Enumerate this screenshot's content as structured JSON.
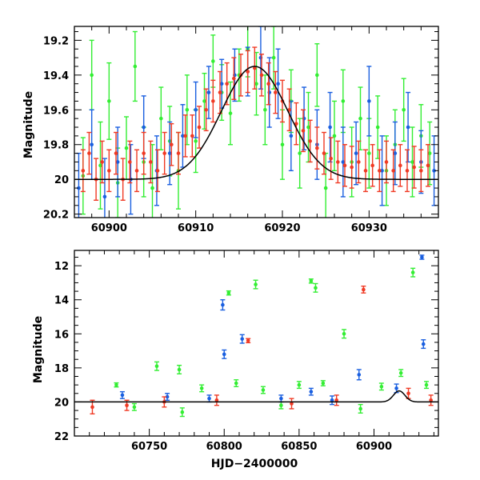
{
  "colors": {
    "green": "#33ee33",
    "blue": "#1a5fe0",
    "red": "#f03a24",
    "model": "#000000"
  },
  "chart_data": [
    {
      "type": "scatter",
      "xlabel": "",
      "ylabel": "Magnitude",
      "xlim": [
        60896,
        60938
      ],
      "ylim": [
        20.22,
        19.12
      ],
      "y_inverted": true,
      "xticks": [
        60900,
        60910,
        60920,
        60930
      ],
      "xtick_labels": [
        "60900",
        "60910",
        "60920",
        "60930"
      ],
      "yticks": [
        19.2,
        19.4,
        19.6,
        19.8,
        20,
        20.2
      ],
      "ytick_labels": [
        "19.2",
        "19.4",
        "19.6",
        "19.8",
        "20",
        "20.2"
      ],
      "grid": false,
      "model_curve": {
        "peak_x": 60916.8,
        "peak_mag": 19.35,
        "base_mag": 20.0,
        "fwhm": 9.0
      },
      "series": [
        {
          "color_key": "green",
          "data": [
            [
              60897,
              19.98,
              0.22
            ],
            [
              60898,
              19.4,
              0.2
            ],
            [
              60899,
              19.92,
              0.25
            ],
            [
              60900,
              19.55,
              0.22
            ],
            [
              60901,
              20.02,
              0.2
            ],
            [
              60902,
              19.82,
              0.18
            ],
            [
              60903,
              19.35,
              0.2
            ],
            [
              60904,
              19.9,
              0.2
            ],
            [
              60905,
              20.05,
              0.25
            ],
            [
              60906,
              19.65,
              0.18
            ],
            [
              60907,
              19.78,
              0.2
            ],
            [
              60908,
              19.95,
              0.22
            ],
            [
              60909,
              19.6,
              0.2
            ],
            [
              60910,
              19.78,
              0.18
            ],
            [
              60911,
              19.55,
              0.16
            ],
            [
              60912,
              19.32,
              0.15
            ],
            [
              60913,
              19.5,
              0.16
            ],
            [
              60914,
              19.62,
              0.18
            ],
            [
              60915,
              19.4,
              0.15
            ],
            [
              60916,
              19.25,
              0.16
            ],
            [
              60917,
              19.45,
              0.18
            ],
            [
              60918,
              19.6,
              0.2
            ],
            [
              60919,
              19.3,
              0.18
            ],
            [
              60920,
              19.8,
              0.2
            ],
            [
              60921,
              19.55,
              0.18
            ],
            [
              60922,
              19.85,
              0.2
            ],
            [
              60923,
              19.7,
              0.2
            ],
            [
              60924,
              19.4,
              0.18
            ],
            [
              60925,
              20.05,
              0.2
            ],
            [
              60926,
              19.75,
              0.2
            ],
            [
              60927,
              19.55,
              0.18
            ],
            [
              60928,
              19.9,
              0.2
            ],
            [
              60929,
              19.65,
              0.18
            ],
            [
              60930,
              19.85,
              0.2
            ],
            [
              60931,
              19.7,
              0.18
            ],
            [
              60932,
              19.95,
              0.2
            ],
            [
              60933,
              19.8,
              0.2
            ],
            [
              60934,
              19.6,
              0.18
            ],
            [
              60935,
              19.9,
              0.2
            ],
            [
              60936,
              19.75,
              0.18
            ],
            [
              60937,
              19.85,
              0.18
            ]
          ]
        },
        {
          "color_key": "blue",
          "data": [
            [
              60896.5,
              20.05,
              0.2
            ],
            [
              60898,
              19.8,
              0.2
            ],
            [
              60899.5,
              20.1,
              0.22
            ],
            [
              60901,
              19.9,
              0.2
            ],
            [
              60902.5,
              20.0,
              0.2
            ],
            [
              60904,
              19.7,
              0.18
            ],
            [
              60905.5,
              19.95,
              0.2
            ],
            [
              60907,
              19.85,
              0.18
            ],
            [
              60908.5,
              19.75,
              0.18
            ],
            [
              60910,
              19.6,
              0.16
            ],
            [
              60911.5,
              19.5,
              0.15
            ],
            [
              60913,
              19.45,
              0.14
            ],
            [
              60914.5,
              19.4,
              0.15
            ],
            [
              60916,
              19.38,
              0.14
            ],
            [
              60917.5,
              19.3,
              0.18
            ],
            [
              60918.5,
              19.5,
              0.2
            ],
            [
              60919.5,
              19.45,
              0.2
            ],
            [
              60921,
              19.75,
              0.2
            ],
            [
              60922.5,
              19.65,
              0.18
            ],
            [
              60924,
              19.8,
              0.2
            ],
            [
              60925.5,
              19.7,
              0.2
            ],
            [
              60927,
              19.9,
              0.2
            ],
            [
              60928.5,
              19.85,
              0.18
            ],
            [
              60930,
              19.55,
              0.2
            ],
            [
              60931.5,
              19.95,
              0.2
            ],
            [
              60933,
              19.85,
              0.18
            ],
            [
              60934.5,
              19.7,
              0.2
            ],
            [
              60936,
              19.9,
              0.18
            ],
            [
              60937.5,
              19.95,
              0.2
            ]
          ]
        },
        {
          "color_key": "red",
          "data": [
            [
              60897,
              19.95,
              0.12
            ],
            [
              60897.7,
              19.85,
              0.12
            ],
            [
              60898.5,
              20.0,
              0.12
            ],
            [
              60899.2,
              19.9,
              0.12
            ],
            [
              60900,
              19.95,
              0.12
            ],
            [
              60900.8,
              19.85,
              0.12
            ],
            [
              60901.6,
              20.0,
              0.12
            ],
            [
              60902.4,
              19.9,
              0.12
            ],
            [
              60903.2,
              19.95,
              0.12
            ],
            [
              60904,
              19.85,
              0.12
            ],
            [
              60904.8,
              19.9,
              0.12
            ],
            [
              60905.6,
              19.95,
              0.12
            ],
            [
              60906.4,
              19.85,
              0.12
            ],
            [
              60907.2,
              19.8,
              0.12
            ],
            [
              60908,
              19.85,
              0.12
            ],
            [
              60908.8,
              19.75,
              0.12
            ],
            [
              60909.6,
              19.75,
              0.12
            ],
            [
              60910.4,
              19.7,
              0.12
            ],
            [
              60911.2,
              19.6,
              0.12
            ],
            [
              60912,
              19.55,
              0.12
            ],
            [
              60912.8,
              19.5,
              0.12
            ],
            [
              60913.6,
              19.45,
              0.12
            ],
            [
              60914.4,
              19.42,
              0.12
            ],
            [
              60915.2,
              19.4,
              0.12
            ],
            [
              60916,
              19.38,
              0.12
            ],
            [
              60916.8,
              19.36,
              0.12
            ],
            [
              60917.6,
              19.4,
              0.12
            ],
            [
              60918.4,
              19.45,
              0.12
            ],
            [
              60919.2,
              19.5,
              0.12
            ],
            [
              60920,
              19.55,
              0.12
            ],
            [
              60920.8,
              19.6,
              0.12
            ],
            [
              60921.6,
              19.68,
              0.12
            ],
            [
              60922.4,
              19.72,
              0.12
            ],
            [
              60923.2,
              19.78,
              0.12
            ],
            [
              60924,
              19.82,
              0.12
            ],
            [
              60924.8,
              19.85,
              0.12
            ],
            [
              60925.6,
              19.88,
              0.12
            ],
            [
              60926.4,
              19.9,
              0.12
            ],
            [
              60927.2,
              19.92,
              0.12
            ],
            [
              60928,
              19.93,
              0.12
            ],
            [
              60928.8,
              19.9,
              0.12
            ],
            [
              60929.6,
              19.95,
              0.12
            ],
            [
              60930.4,
              19.92,
              0.12
            ],
            [
              60931.2,
              19.95,
              0.12
            ],
            [
              60932,
              19.9,
              0.12
            ],
            [
              60932.8,
              19.95,
              0.12
            ],
            [
              60933.6,
              19.92,
              0.12
            ],
            [
              60934.4,
              19.95,
              0.12
            ],
            [
              60935.2,
              19.93,
              0.12
            ],
            [
              60936,
              19.95,
              0.12
            ],
            [
              60936.8,
              19.92,
              0.12
            ]
          ]
        }
      ]
    },
    {
      "type": "scatter",
      "xlabel": "HJD−2400000",
      "ylabel": "Magnitude",
      "xlim": [
        60700,
        60943
      ],
      "ylim": [
        22,
        11.1
      ],
      "y_inverted": true,
      "xticks": [
        60750,
        60800,
        60850,
        60900
      ],
      "xtick_labels": [
        "60750",
        "60800",
        "60850",
        "60900"
      ],
      "yticks": [
        12,
        14,
        16,
        18,
        20,
        22
      ],
      "ytick_labels": [
        "12",
        "14",
        "16",
        "18",
        "20",
        "22"
      ],
      "grid": false,
      "model_curve": {
        "peak_x": 60916.8,
        "peak_mag": 19.35,
        "base_mag": 20.0,
        "fwhm": 9.0
      },
      "series": [
        {
          "color_key": "green",
          "data": [
            [
              60728,
              19.0,
              0.12
            ],
            [
              60740,
              20.3,
              0.2
            ],
            [
              60755,
              17.9,
              0.25
            ],
            [
              60770,
              18.1,
              0.25
            ],
            [
              60772,
              20.6,
              0.25
            ],
            [
              60785,
              19.2,
              0.2
            ],
            [
              60803,
              13.6,
              0.12
            ],
            [
              60808,
              18.9,
              0.2
            ],
            [
              60821,
              13.1,
              0.25
            ],
            [
              60826,
              19.3,
              0.2
            ],
            [
              60838,
              20.2,
              0.2
            ],
            [
              60850,
              19.0,
              0.2
            ],
            [
              60858,
              12.9,
              0.12
            ],
            [
              60861,
              13.3,
              0.25
            ],
            [
              60866,
              18.9,
              0.15
            ],
            [
              60880,
              16.0,
              0.25
            ],
            [
              60891,
              20.4,
              0.25
            ],
            [
              60905,
              19.1,
              0.2
            ],
            [
              60918,
              18.3,
              0.2
            ],
            [
              60926,
              12.4,
              0.25
            ],
            [
              60935,
              19.0,
              0.2
            ]
          ]
        },
        {
          "color_key": "blue",
          "data": [
            [
              60732,
              19.6,
              0.2
            ],
            [
              60762,
              19.7,
              0.2
            ],
            [
              60790,
              19.8,
              0.2
            ],
            [
              60799,
              14.3,
              0.3
            ],
            [
              60800,
              17.2,
              0.25
            ],
            [
              60812,
              16.3,
              0.25
            ],
            [
              60838,
              19.8,
              0.2
            ],
            [
              60858,
              19.4,
              0.2
            ],
            [
              60872,
              19.9,
              0.25
            ],
            [
              60890,
              18.4,
              0.3
            ],
            [
              60915,
              19.2,
              0.25
            ],
            [
              60932,
              11.5,
              0.12
            ],
            [
              60933,
              16.6,
              0.25
            ]
          ]
        },
        {
          "color_key": "red",
          "data": [
            [
              60712,
              20.3,
              0.4
            ],
            [
              60735,
              20.2,
              0.3
            ],
            [
              60760,
              20.0,
              0.3
            ],
            [
              60795,
              19.9,
              0.3
            ],
            [
              60816,
              16.4,
              0.12
            ],
            [
              60845,
              20.1,
              0.3
            ],
            [
              60875,
              19.9,
              0.3
            ],
            [
              60893,
              13.4,
              0.2
            ],
            [
              60923,
              19.5,
              0.3
            ],
            [
              60938,
              19.9,
              0.3
            ]
          ]
        }
      ]
    }
  ]
}
